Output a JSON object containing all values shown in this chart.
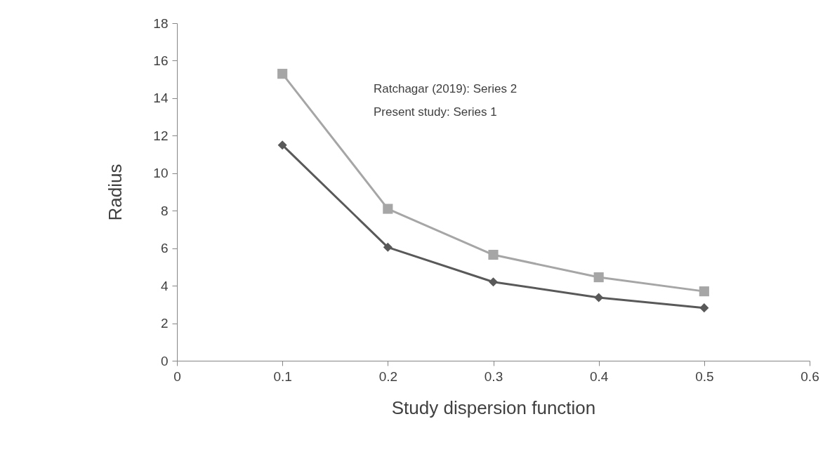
{
  "chart_data": {
    "type": "line",
    "xlabel": "Study dispersion function",
    "ylabel": "Radius",
    "annotations": [
      "Ratchagar (2019): Series 2",
      "Present study: Series 1"
    ],
    "x": [
      0.1,
      0.2,
      0.3,
      0.4,
      0.5
    ],
    "series": [
      {
        "color": "#a6a6a6",
        "marker": "square",
        "values": [
          15.3,
          8.1,
          5.65,
          4.45,
          3.7
        ]
      },
      {
        "color": "#595959",
        "marker": "diamond",
        "values": [
          11.5,
          6.05,
          4.2,
          3.37,
          2.82
        ]
      }
    ],
    "xlim": [
      0,
      0.6
    ],
    "xticks": [
      0,
      0.1,
      0.2,
      0.3,
      0.4,
      0.5,
      0.6
    ],
    "ylim": [
      0,
      18
    ],
    "yticks": [
      0,
      2,
      4,
      6,
      8,
      10,
      12,
      14,
      16,
      18
    ],
    "grid": false
  }
}
